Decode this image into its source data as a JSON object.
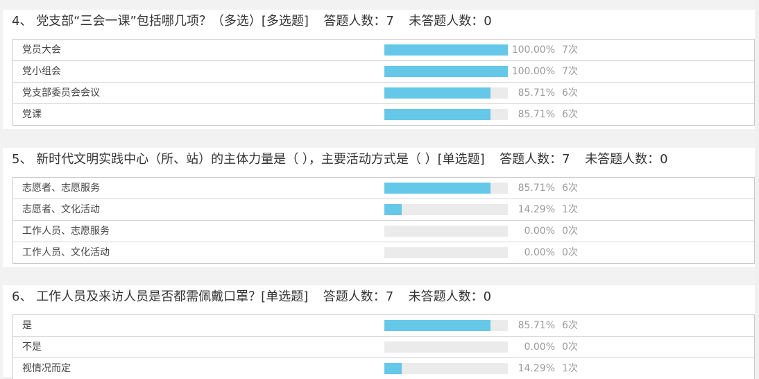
{
  "questions": [
    {
      "number": "4、",
      "title": "党支部“三会一课”包括哪几项？（多选）[多选题]",
      "answered": "答题人数：7",
      "unanswered": "未答题人数：0",
      "options": [
        {
          "label": "党员大会",
          "percent": "100.00%",
          "count": "7次",
          "fraction": 1.0
        },
        {
          "label": "党小组会",
          "percent": "100.00%",
          "count": "7次",
          "fraction": 1.0
        },
        {
          "label": "党支部委员会会议",
          "percent": "85.71%",
          "count": "6次",
          "fraction": 0.8571
        },
        {
          "label": "党课",
          "percent": "85.71%",
          "count": "6次",
          "fraction": 0.8571
        }
      ]
    },
    {
      "number": "5、",
      "title": "新时代文明实践中心（所、站）的主体力量是（ ），主要活动方式是（ ）[单选题]",
      "answered": "答题人数：7",
      "unanswered": "未答题人数：0",
      "options": [
        {
          "label": "志愿者、志愿服务",
          "percent": "85.71%",
          "count": "6次",
          "fraction": 0.8571
        },
        {
          "label": "志愿者、文化活动",
          "percent": "14.29%",
          "count": "1次",
          "fraction": 0.1429
        },
        {
          "label": "工作人员、志愿服务",
          "percent": "0.00%",
          "count": "0次",
          "fraction": 0.0
        },
        {
          "label": "工作人员、文化活动",
          "percent": "0.00%",
          "count": "0次",
          "fraction": 0.0
        }
      ]
    },
    {
      "number": "6、",
      "title": "工作人员及来访人员是否都需佩戴口罩？[单选题]",
      "answered": "答题人数：7",
      "unanswered": "未答题人数：0",
      "options": [
        {
          "label": "是",
          "percent": "85.71%",
          "count": "6次",
          "fraction": 0.8571
        },
        {
          "label": "不是",
          "percent": "0.00%",
          "count": "0次",
          "fraction": 0.0
        },
        {
          "label": "视情况而定",
          "percent": "14.29%",
          "count": "1次",
          "fraction": 0.1429
        }
      ]
    }
  ],
  "colors": {
    "bar_fill": "#66c8e8",
    "bar_track": "#ebebeb"
  }
}
